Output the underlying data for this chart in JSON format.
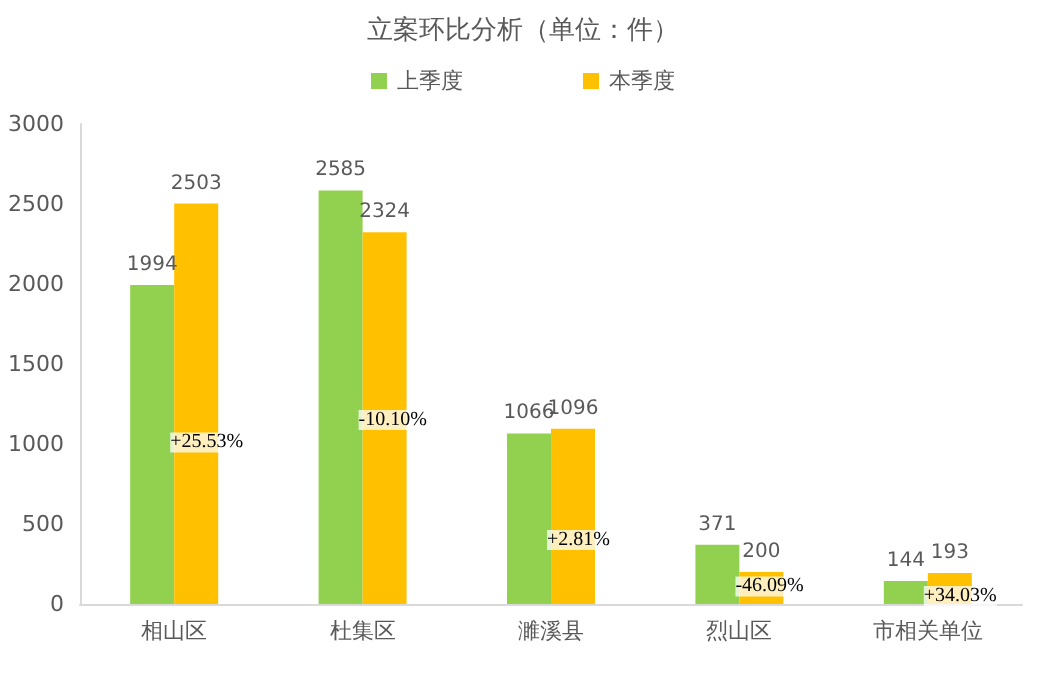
{
  "chart_data": {
    "type": "bar",
    "title": "立案环比分析（单位：件）",
    "categories": [
      "相山区",
      "杜集区",
      "濉溪县",
      "烈山区",
      "市相关单位"
    ],
    "series": [
      {
        "name": "上季度",
        "color": "#92d050",
        "values": [
          1994,
          2585,
          1066,
          371,
          144
        ]
      },
      {
        "name": "本季度",
        "color": "#ffc000",
        "values": [
          2503,
          2324,
          1096,
          200,
          193
        ]
      }
    ],
    "ylim": [
      0,
      3000
    ],
    "yticks": [
      0,
      500,
      1000,
      1500,
      2000,
      2500,
      3000
    ],
    "grid": false,
    "legend": "top",
    "data_labels": true,
    "annotations": [
      {
        "text": "+25.53%",
        "x": "相山区",
        "y": 1010
      },
      {
        "text": "-10.10%",
        "x": "杜集区",
        "y": 1150
      },
      {
        "text": "+2.81%",
        "x": "濉溪县",
        "y": 400
      },
      {
        "text": "-46.09%",
        "x": "烈山区",
        "y": 110
      },
      {
        "text": "+34.03%",
        "x": "市相关单位",
        "y": 50
      }
    ]
  }
}
